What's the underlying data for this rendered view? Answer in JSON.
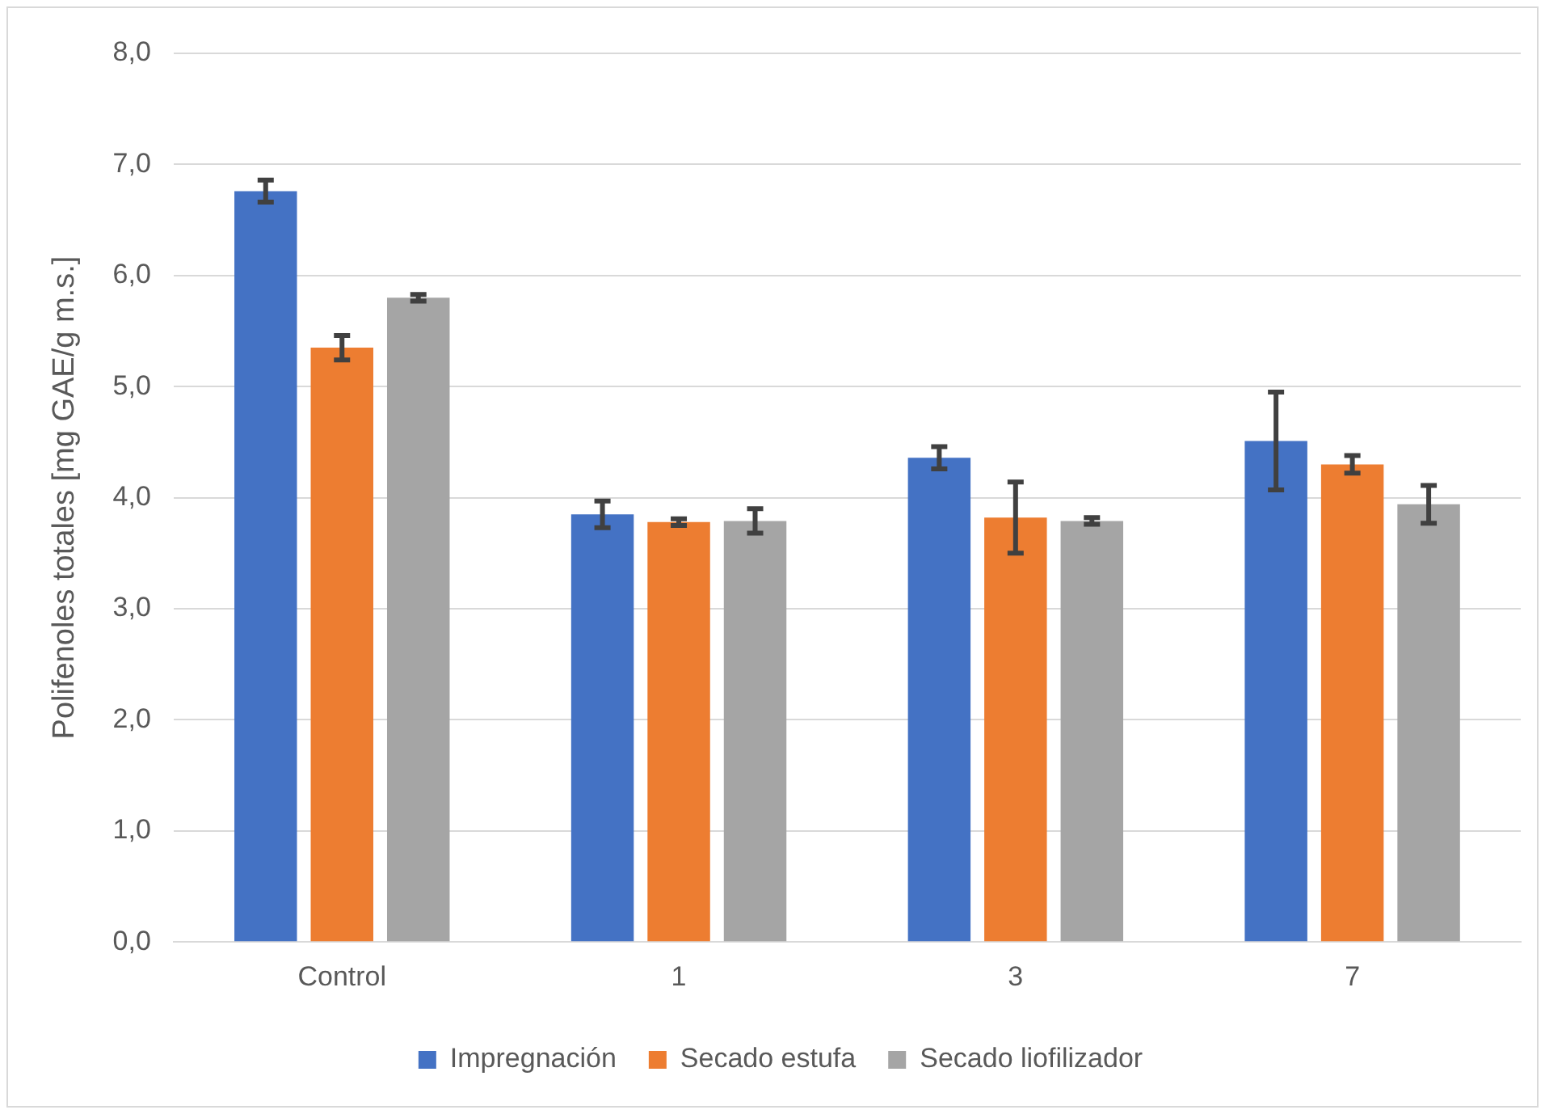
{
  "chart_data": {
    "type": "bar",
    "ylabel": "Polifenoles totales [mg GAE/g m.s.]",
    "categories": [
      "Control",
      "1",
      "3",
      "7"
    ],
    "series": [
      {
        "name": "Impregnación",
        "color": "#4472c4",
        "values": [
          6.76,
          3.85,
          4.36,
          4.51
        ],
        "errors": [
          0.1,
          0.12,
          0.1,
          0.44
        ]
      },
      {
        "name": "Secado estufa",
        "color": "#ed7d31",
        "values": [
          5.35,
          3.78,
          3.82,
          4.3
        ],
        "errors": [
          0.11,
          0.03,
          0.32,
          0.08
        ]
      },
      {
        "name": "Secado liofilizador",
        "color": "#a5a5a5",
        "values": [
          5.8,
          3.79,
          3.79,
          3.94
        ],
        "errors": [
          0.03,
          0.11,
          0.03,
          0.17
        ]
      }
    ],
    "ylim": [
      0,
      8
    ],
    "yticks": [
      {
        "value": 0,
        "label": "0,0"
      },
      {
        "value": 1,
        "label": "1,0"
      },
      {
        "value": 2,
        "label": "2,0"
      },
      {
        "value": 3,
        "label": "3,0"
      },
      {
        "value": 4,
        "label": "4,0"
      },
      {
        "value": 5,
        "label": "5,0"
      },
      {
        "value": 6,
        "label": "6,0"
      },
      {
        "value": 7,
        "label": "7,0"
      },
      {
        "value": 8,
        "label": "8,0"
      }
    ],
    "grid": "y",
    "legend": "bottom"
  }
}
